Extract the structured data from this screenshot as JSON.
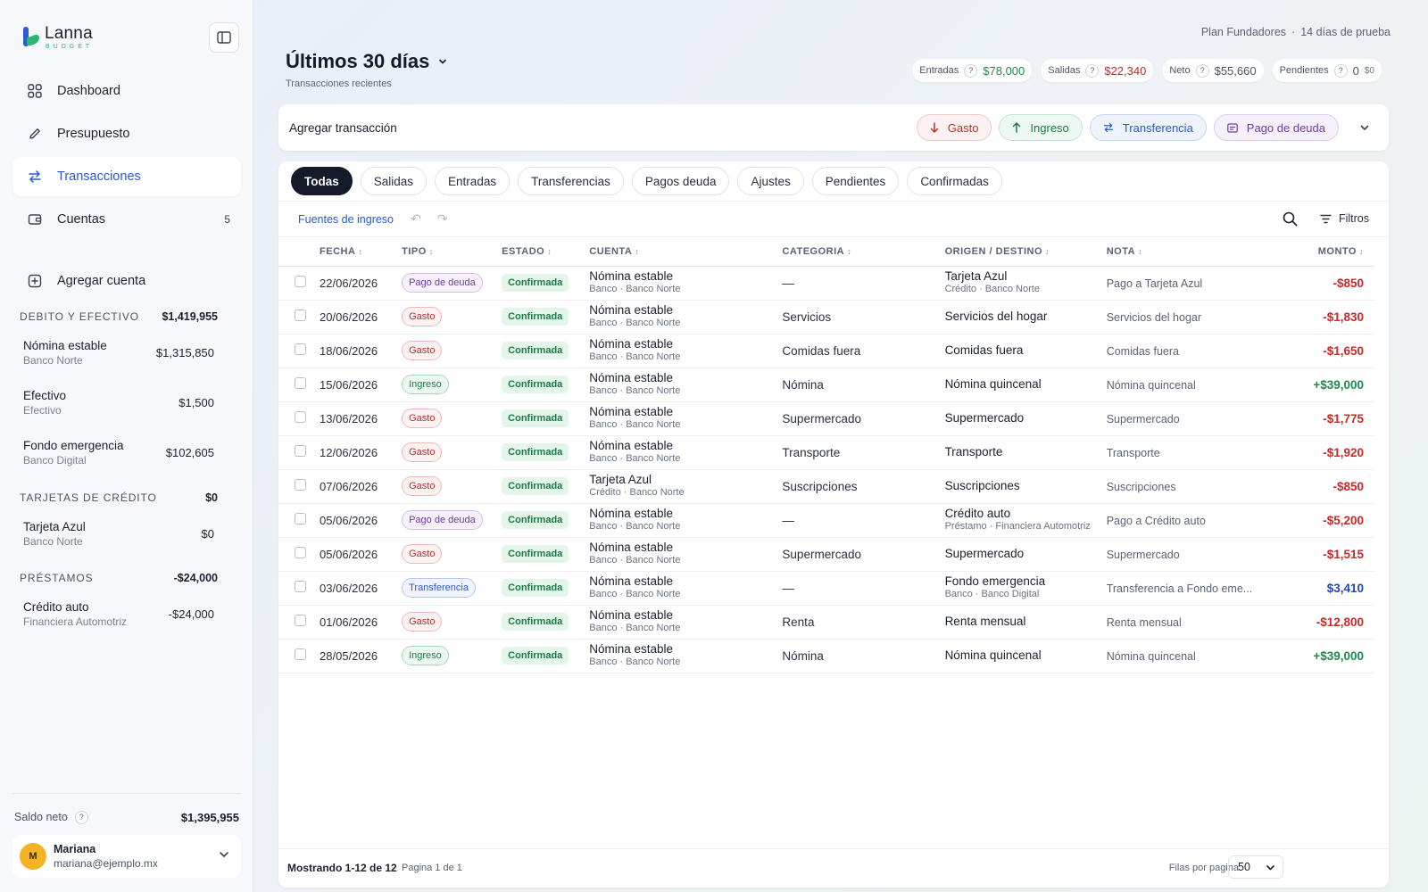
{
  "brand": {
    "name": "Lanna",
    "sub": "BUDGET"
  },
  "nav": [
    {
      "label": "Dashboard",
      "icon": "grid-icon"
    },
    {
      "label": "Presupuesto",
      "icon": "pencil-icon"
    },
    {
      "label": "Transacciones",
      "icon": "transfer-icon"
    },
    {
      "label": "Cuentas",
      "icon": "wallet-icon",
      "count": "5"
    },
    {
      "label": "Agregar cuenta",
      "icon": "plus-square-icon"
    }
  ],
  "groups": {
    "debito": {
      "title": "DEBITO Y EFECTIVO",
      "total": "$1,419,955",
      "accounts": [
        {
          "name": "Nómina estable",
          "sub": "Banco Norte",
          "value": "$1,315,850"
        },
        {
          "name": "Efectivo",
          "sub": "Efectivo",
          "value": "$1,500"
        },
        {
          "name": "Fondo emergencia",
          "sub": "Banco Digital",
          "value": "$102,605"
        }
      ]
    },
    "credito": {
      "title": "TARJETAS DE CRÉDITO",
      "total": "$0",
      "accounts": [
        {
          "name": "Tarjeta Azul",
          "sub": "Banco Norte",
          "value": "$0"
        }
      ]
    },
    "prestamos": {
      "title": "PRÉSTAMOS",
      "total": "-$24,000",
      "accounts": [
        {
          "name": "Crédito auto",
          "sub": "Financiera Automotriz",
          "value": "-$24,000"
        }
      ]
    }
  },
  "footer": {
    "net_label": "Saldo neto",
    "net_value": "$1,395,955",
    "user_initial": "M",
    "user_name": "Mariana",
    "user_email": "mariana@ejemplo.mx"
  },
  "header": {
    "plan": "Plan Fundadores",
    "trial": "14 días de prueba",
    "title": "Últimos 30 días",
    "subtitle": "Transacciones recientes",
    "stats": {
      "entradas_label": "Entradas",
      "entradas": "$78,000",
      "salidas_label": "Salidas",
      "salidas": "$22,340",
      "neto_label": "Neto",
      "neto": "$55,660",
      "pendientes_label": "Pendientes",
      "pendientes_count": "0",
      "pendientes_amount": "$0"
    }
  },
  "add_bar": {
    "label": "Agregar transacción",
    "gasto": "Gasto",
    "ingreso": "Ingreso",
    "transferencia": "Transferencia",
    "deuda": "Pago de deuda"
  },
  "tabs": [
    "Todas",
    "Salidas",
    "Entradas",
    "Transferencias",
    "Pagos deuda",
    "Ajustes",
    "Pendientes",
    "Confirmadas"
  ],
  "toolbar": {
    "fuentes": "Fuentes de ingreso",
    "filtros": "Filtros"
  },
  "columns": {
    "fecha": "FECHA",
    "tipo": "TIPO",
    "estado": "ESTADO",
    "cuenta": "CUENTA",
    "categoria": "CATEGORIA",
    "origen": "ORIGEN / DESTINO",
    "nota": "NOTA",
    "monto": "MONTO"
  },
  "rows": [
    {
      "fecha": "22/06/2026",
      "tipo": "Pago de deuda",
      "tipo_kind": "deuda",
      "estado": "Confirmada",
      "cuenta": "Nómina estable",
      "cuenta_sub": "Banco · Banco Norte",
      "categoria": "—",
      "origen": "Tarjeta Azul",
      "origen_sub": "Crédito · Banco Norte",
      "nota": "Pago a Tarjeta Azul",
      "monto": "-$850",
      "monto_kind": "red"
    },
    {
      "fecha": "20/06/2026",
      "tipo": "Gasto",
      "tipo_kind": "gasto",
      "estado": "Confirmada",
      "cuenta": "Nómina estable",
      "cuenta_sub": "Banco · Banco Norte",
      "categoria": "Servicios",
      "origen": "Servicios del hogar",
      "origen_sub": "",
      "nota": "Servicios del hogar",
      "monto": "-$1,830",
      "monto_kind": "red"
    },
    {
      "fecha": "18/06/2026",
      "tipo": "Gasto",
      "tipo_kind": "gasto",
      "estado": "Confirmada",
      "cuenta": "Nómina estable",
      "cuenta_sub": "Banco · Banco Norte",
      "categoria": "Comidas fuera",
      "origen": "Comidas fuera",
      "origen_sub": "",
      "nota": "Comidas fuera",
      "monto": "-$1,650",
      "monto_kind": "red"
    },
    {
      "fecha": "15/06/2026",
      "tipo": "Ingreso",
      "tipo_kind": "ingreso",
      "estado": "Confirmada",
      "cuenta": "Nómina estable",
      "cuenta_sub": "Banco · Banco Norte",
      "categoria": "Nómina",
      "origen": "Nómina quincenal",
      "origen_sub": "",
      "nota": "Nómina quincenal",
      "monto": "+$39,000",
      "monto_kind": "green"
    },
    {
      "fecha": "13/06/2026",
      "tipo": "Gasto",
      "tipo_kind": "gasto",
      "estado": "Confirmada",
      "cuenta": "Nómina estable",
      "cuenta_sub": "Banco · Banco Norte",
      "categoria": "Supermercado",
      "origen": "Supermercado",
      "origen_sub": "",
      "nota": "Supermercado",
      "monto": "-$1,775",
      "monto_kind": "red"
    },
    {
      "fecha": "12/06/2026",
      "tipo": "Gasto",
      "tipo_kind": "gasto",
      "estado": "Confirmada",
      "cuenta": "Nómina estable",
      "cuenta_sub": "Banco · Banco Norte",
      "categoria": "Transporte",
      "origen": "Transporte",
      "origen_sub": "",
      "nota": "Transporte",
      "monto": "-$1,920",
      "monto_kind": "red"
    },
    {
      "fecha": "07/06/2026",
      "tipo": "Gasto",
      "tipo_kind": "gasto",
      "estado": "Confirmada",
      "cuenta": "Tarjeta Azul",
      "cuenta_sub": "Crédito · Banco Norte",
      "categoria": "Suscripciones",
      "origen": "Suscripciones",
      "origen_sub": "",
      "nota": "Suscripciones",
      "monto": "-$850",
      "monto_kind": "red"
    },
    {
      "fecha": "05/06/2026",
      "tipo": "Pago de deuda",
      "tipo_kind": "deuda",
      "estado": "Confirmada",
      "cuenta": "Nómina estable",
      "cuenta_sub": "Banco · Banco Norte",
      "categoria": "—",
      "origen": "Crédito auto",
      "origen_sub": "Préstamo · Financiera Automotriz",
      "nota": "Pago a Crédito auto",
      "monto": "-$5,200",
      "monto_kind": "red"
    },
    {
      "fecha": "05/06/2026",
      "tipo": "Gasto",
      "tipo_kind": "gasto",
      "estado": "Confirmada",
      "cuenta": "Nómina estable",
      "cuenta_sub": "Banco · Banco Norte",
      "categoria": "Supermercado",
      "origen": "Supermercado",
      "origen_sub": "",
      "nota": "Supermercado",
      "monto": "-$1,515",
      "monto_kind": "red"
    },
    {
      "fecha": "03/06/2026",
      "tipo": "Transferencia",
      "tipo_kind": "transfer",
      "estado": "Confirmada",
      "cuenta": "Nómina estable",
      "cuenta_sub": "Banco · Banco Norte",
      "categoria": "—",
      "origen": "Fondo emergencia",
      "origen_sub": "Banco · Banco Digital",
      "nota": "Transferencia a Fondo eme...",
      "monto": "$3,410",
      "monto_kind": "blue"
    },
    {
      "fecha": "01/06/2026",
      "tipo": "Gasto",
      "tipo_kind": "gasto",
      "estado": "Confirmada",
      "cuenta": "Nómina estable",
      "cuenta_sub": "Banco · Banco Norte",
      "categoria": "Renta",
      "origen": "Renta mensual",
      "origen_sub": "",
      "nota": "Renta mensual",
      "monto": "-$12,800",
      "monto_kind": "red"
    },
    {
      "fecha": "28/05/2026",
      "tipo": "Ingreso",
      "tipo_kind": "ingreso",
      "estado": "Confirmada",
      "cuenta": "Nómina estable",
      "cuenta_sub": "Banco · Banco Norte",
      "categoria": "Nómina",
      "origen": "Nómina quincenal",
      "origen_sub": "",
      "nota": "Nómina quincenal",
      "monto": "+$39,000",
      "monto_kind": "green"
    }
  ],
  "pagination": {
    "showing": "Mostrando 1-12 de 12",
    "page": "Pagina 1 de 1",
    "rows_label": "Filas por pagina",
    "rows_value": "50"
  }
}
